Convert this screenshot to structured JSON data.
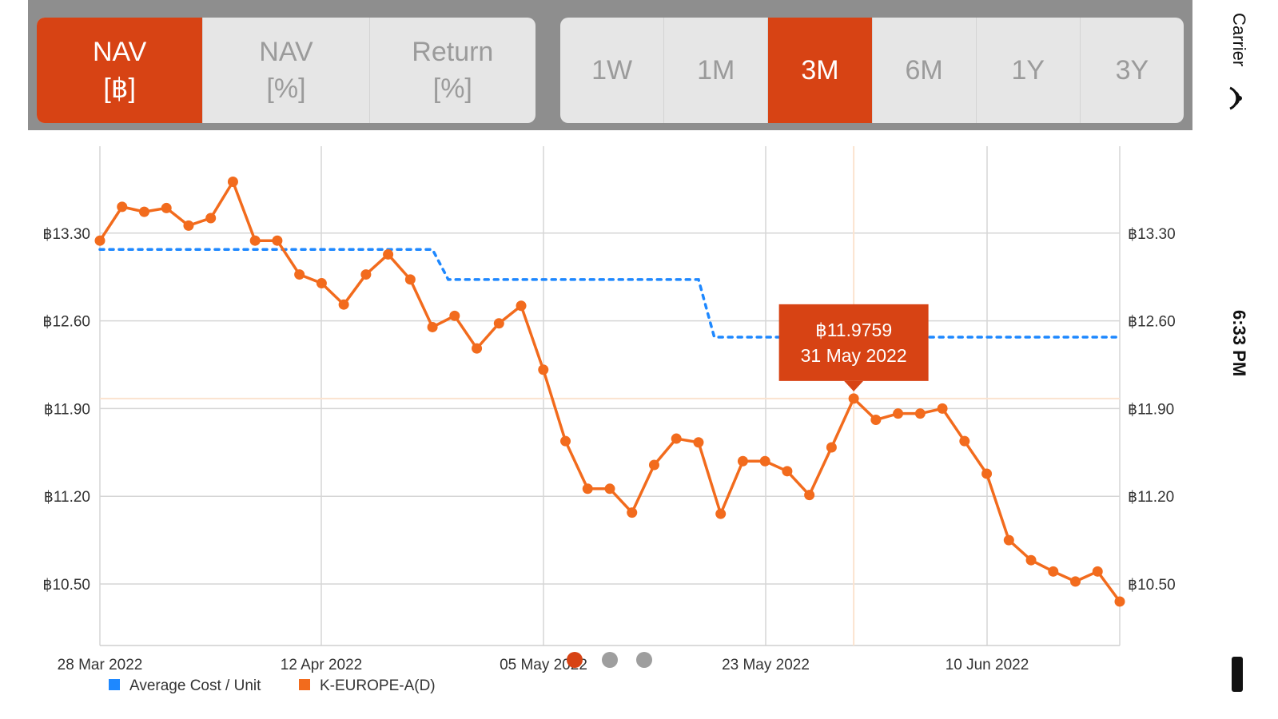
{
  "toolbar": {
    "view_tabs": [
      {
        "label": "NAV\n[฿]",
        "active": true
      },
      {
        "label": "NAV\n[%]",
        "active": false
      },
      {
        "label": "Return\n[%]",
        "active": false
      }
    ],
    "range_tabs": [
      {
        "label": "1W",
        "active": false
      },
      {
        "label": "1M",
        "active": false
      },
      {
        "label": "3M",
        "active": true
      },
      {
        "label": "6M",
        "active": false
      },
      {
        "label": "1Y",
        "active": false
      },
      {
        "label": "3Y",
        "active": false
      }
    ]
  },
  "status_bar": {
    "carrier": "Carrier",
    "time": "6:33 PM"
  },
  "colors": {
    "accent": "#d74314",
    "nav_line": "#f26b1d",
    "avg_line": "#1e88ff",
    "inactive_dot": "#9e9e9e"
  },
  "page_indicator": {
    "count": 3,
    "active_index": 0
  },
  "chart_data": {
    "type": "line",
    "x_ticks": [
      "28 Mar 2022",
      "12 Apr 2022",
      "05 May 2022",
      "23 May 2022",
      "10 Jun 2022"
    ],
    "y_ticks": [
      "฿13.30",
      "฿12.60",
      "฿11.90",
      "฿11.20",
      "฿10.50"
    ],
    "y_tick_values": [
      13.3,
      12.6,
      11.9,
      11.2,
      10.5
    ],
    "ylim": [
      10.0,
      14.0
    ],
    "grid": true,
    "legend_position": "bottom-left",
    "series": [
      {
        "name": "K-EUROPE-A(D)",
        "color": "#f26b1d",
        "values": [
          13.24,
          13.51,
          13.47,
          13.5,
          13.36,
          13.42,
          13.71,
          13.24,
          13.24,
          12.97,
          12.9,
          12.73,
          12.97,
          13.13,
          12.93,
          12.55,
          12.64,
          12.38,
          12.58,
          12.72,
          12.21,
          11.64,
          11.26,
          11.26,
          11.07,
          11.45,
          11.66,
          11.63,
          11.06,
          11.48,
          11.48,
          11.4,
          11.21,
          11.59,
          11.98,
          11.81,
          11.86,
          11.86,
          11.9,
          11.64,
          11.38,
          10.85,
          10.69,
          10.6,
          10.52,
          10.6,
          10.36
        ]
      },
      {
        "name": "Average Cost / Unit",
        "color": "#1e88ff",
        "style": "dotted",
        "steps": [
          {
            "from_index": 0,
            "to_index": 15,
            "value": 13.17
          },
          {
            "from_index": 16,
            "to_index": 27,
            "value": 12.93
          },
          {
            "from_index": 28,
            "to_index": 46,
            "value": 12.47
          }
        ]
      }
    ],
    "tooltip": {
      "point_index": 34,
      "value": "฿11.9759",
      "date": "31 May 2022"
    }
  }
}
